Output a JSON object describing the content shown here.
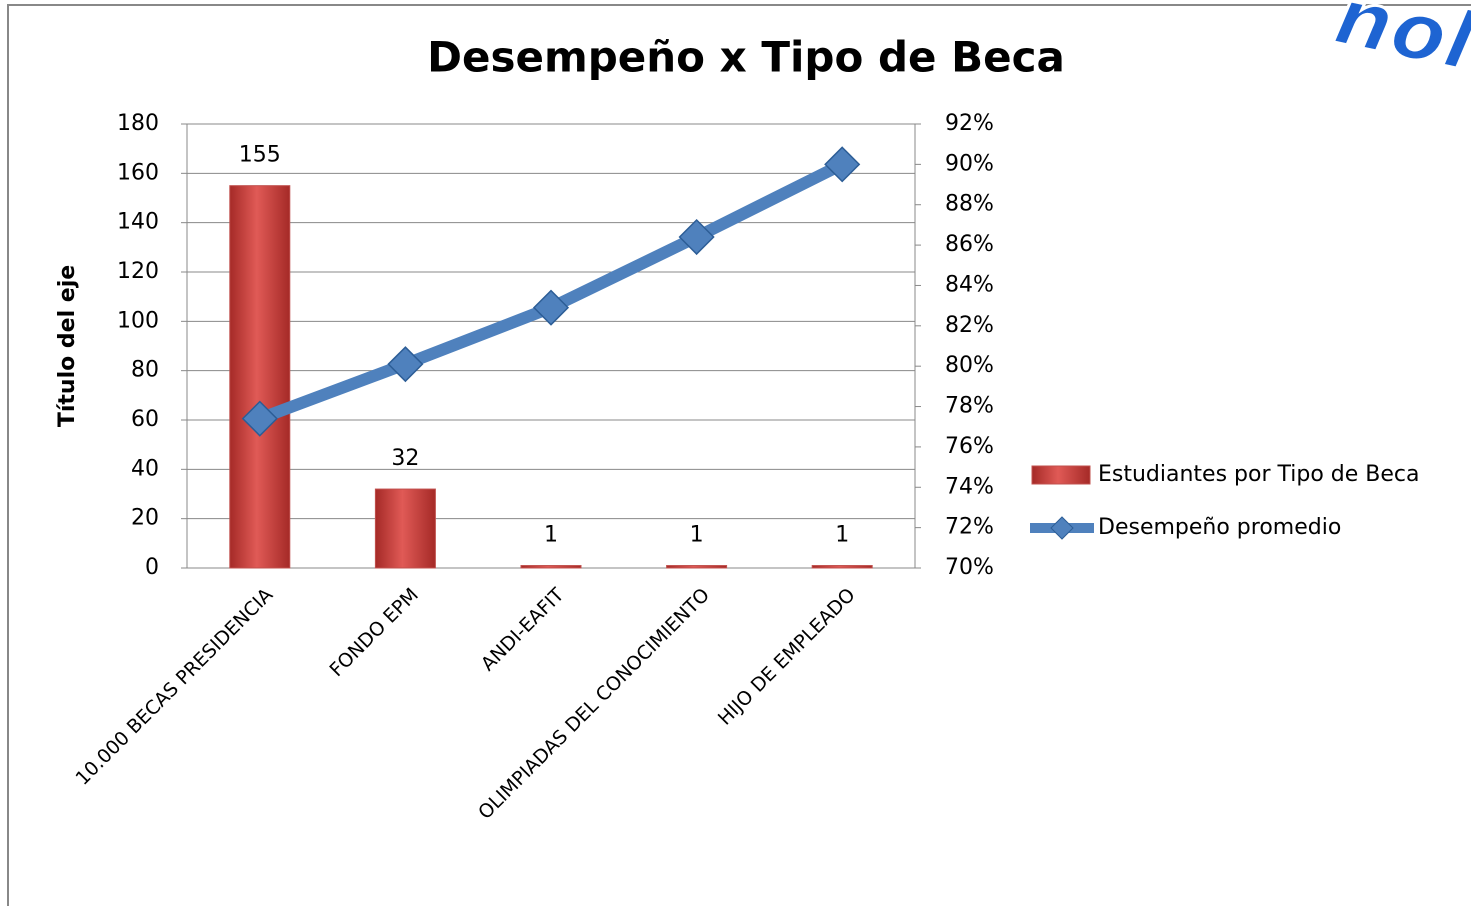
{
  "chart_data": {
    "type": "bar_line",
    "title": "Desempeño x Tipo de Beca",
    "watermark": "nola",
    "y_label": "Título del eje",
    "categories": [
      "10.000 BECAS PRESIDENCIA",
      "FONDO EPM",
      "ANDI-EAFIT",
      "OLIMPIADAS DEL CONOCIMIENTO",
      "HIJO DE EMPLEADO"
    ],
    "series": [
      {
        "name": "Estudiantes por Tipo de Beca",
        "color": "#c0504d",
        "type": "bar",
        "values": [
          155,
          32,
          1,
          1,
          1
        ]
      },
      {
        "name": "Desempeño promedio",
        "color": "#4f81bd",
        "type": "line",
        "axis": "y2",
        "values": [
          77.4,
          80.1,
          82.9,
          86.4,
          90.0
        ]
      }
    ],
    "ylim": [
      0,
      180
    ],
    "yticks": [
      0,
      20,
      40,
      60,
      80,
      100,
      120,
      140,
      160,
      180
    ],
    "y2lim": [
      70,
      92
    ],
    "y2ticks": [
      {
        "value": 70,
        "label": "70%"
      },
      {
        "value": 72,
        "label": "72%"
      },
      {
        "value": 74,
        "label": "74%"
      },
      {
        "value": 76,
        "label": "76%"
      },
      {
        "value": 78,
        "label": "78%"
      },
      {
        "value": 80,
        "label": "80%"
      },
      {
        "value": 82,
        "label": "82%"
      },
      {
        "value": 84,
        "label": "84%"
      },
      {
        "value": 86,
        "label": "86%"
      },
      {
        "value": 88,
        "label": "88%"
      },
      {
        "value": 90,
        "label": "90%"
      },
      {
        "value": 92,
        "label": "92%"
      }
    ],
    "grid": true,
    "legend": "right"
  }
}
